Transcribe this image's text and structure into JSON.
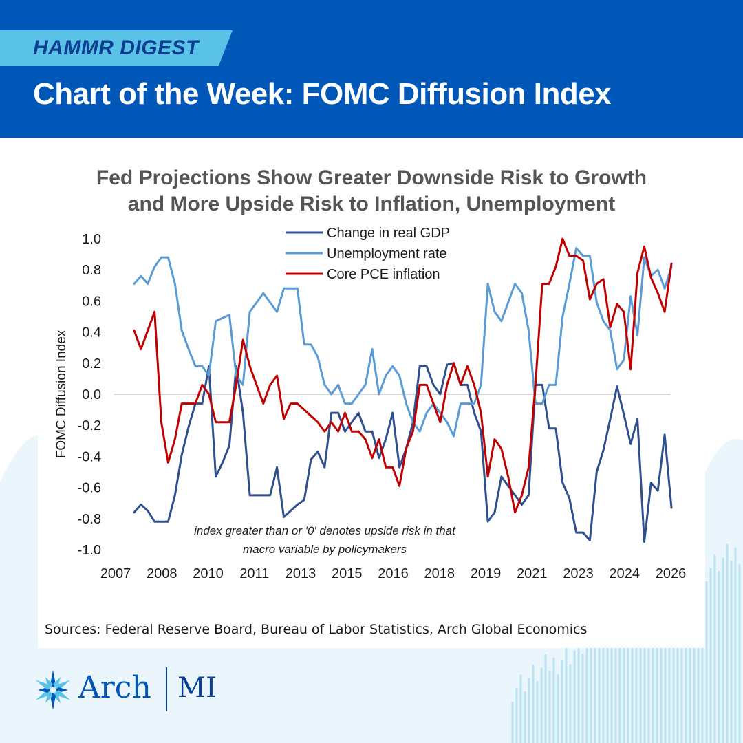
{
  "header": {
    "tag": "HAMMR DIGEST",
    "title": "Chart of the Week: FOMC Diffusion Index"
  },
  "brand": {
    "name": "Arch",
    "suffix": "MI",
    "primary": "#0057b8",
    "accent": "#5bc2e7",
    "navy": "#0b3d91"
  },
  "source": "Sources: Federal Reserve Board, Bureau of Labor Statistics, Arch Global Economics",
  "chart_data": {
    "type": "line",
    "title": "Fed Projections Show Greater Downside Risk to Growth",
    "title_line2": "and More Upside Risk to Inflation, Unemployment",
    "ylabel": "FOMC Diffusion Index",
    "xlabel": "",
    "ylim": [
      -1.0,
      1.0
    ],
    "xlim": [
      2007.33,
      2026.42
    ],
    "yticks": [
      "1.0",
      "0.8",
      "0.6",
      "0.4",
      "0.2",
      "0.0",
      "-0.2",
      "-0.4",
      "-0.6",
      "-0.8",
      "-1.0"
    ],
    "xticks": [
      "2007",
      "2008",
      "2010",
      "2011",
      "2013",
      "2015",
      "2016",
      "2018",
      "2019",
      "2021",
      "2023",
      "2024",
      "2026"
    ],
    "grid": false,
    "legend_position": "top-center",
    "annotation": [
      "index greater than or '0' denotes upside risk in that",
      "macro variable by policymakers"
    ],
    "series": [
      {
        "name": "Change in real GDP",
        "color": "#2f4f8f",
        "values": [
          -0.76,
          -0.71,
          -0.75,
          -0.82,
          -0.82,
          -0.82,
          -0.65,
          -0.39,
          -0.21,
          -0.06,
          -0.06,
          0.18,
          -0.53,
          -0.44,
          -0.33,
          0.18,
          -0.12,
          -0.65,
          -0.65,
          -0.65,
          -0.65,
          -0.47,
          -0.79,
          -0.75,
          -0.71,
          -0.68,
          -0.42,
          -0.37,
          -0.47,
          -0.12,
          -0.12,
          -0.24,
          -0.18,
          -0.12,
          -0.24,
          -0.24,
          -0.41,
          -0.29,
          -0.12,
          -0.47,
          -0.35,
          -0.18,
          0.18,
          0.18,
          0.06,
          0.0,
          0.19,
          0.2,
          0.06,
          0.06,
          -0.12,
          -0.24,
          -0.82,
          -0.76,
          -0.53,
          -0.59,
          -0.65,
          -0.71,
          -0.65,
          0.06,
          0.06,
          -0.22,
          -0.22,
          -0.57,
          -0.67,
          -0.89,
          -0.89,
          -0.94,
          -0.5,
          -0.36,
          -0.16,
          0.05,
          -0.13,
          -0.32,
          -0.16,
          -0.95,
          -0.57,
          -0.62,
          -0.26,
          -0.73
        ]
      },
      {
        "name": "Unemployment rate",
        "color": "#5b9bd5",
        "values": [
          0.71,
          0.76,
          0.71,
          0.82,
          0.88,
          0.88,
          0.71,
          0.41,
          0.29,
          0.18,
          0.18,
          0.12,
          0.47,
          0.49,
          0.51,
          0.12,
          0.06,
          0.53,
          0.59,
          0.65,
          0.59,
          0.53,
          0.68,
          0.68,
          0.68,
          0.32,
          0.32,
          0.24,
          0.06,
          0.0,
          0.06,
          -0.06,
          -0.06,
          0.0,
          0.06,
          0.29,
          0.0,
          0.12,
          0.18,
          0.12,
          -0.06,
          -0.18,
          -0.24,
          -0.12,
          -0.06,
          -0.12,
          -0.18,
          -0.27,
          -0.06,
          -0.06,
          -0.06,
          0.06,
          0.71,
          0.53,
          0.47,
          0.59,
          0.71,
          0.65,
          0.41,
          -0.06,
          -0.06,
          0.06,
          0.06,
          0.5,
          0.71,
          0.94,
          0.89,
          0.89,
          0.59,
          0.47,
          0.41,
          0.16,
          0.22,
          0.63,
          0.38,
          0.88,
          0.76,
          0.8,
          0.68,
          0.82
        ]
      },
      {
        "name": "Core PCE inflation",
        "color": "#c00000",
        "values": [
          0.41,
          0.29,
          0.41,
          0.53,
          -0.18,
          -0.44,
          -0.29,
          -0.06,
          -0.06,
          -0.06,
          0.06,
          0.0,
          -0.18,
          -0.18,
          -0.18,
          0.06,
          0.35,
          0.18,
          0.06,
          -0.06,
          0.06,
          0.12,
          -0.16,
          -0.06,
          -0.06,
          -0.1,
          -0.14,
          -0.18,
          -0.24,
          -0.18,
          -0.24,
          -0.12,
          -0.24,
          -0.24,
          -0.29,
          -0.41,
          -0.29,
          -0.47,
          -0.47,
          -0.59,
          -0.35,
          -0.24,
          0.06,
          0.06,
          -0.06,
          -0.18,
          0.06,
          0.2,
          0.06,
          0.18,
          0.06,
          -0.12,
          -0.53,
          -0.29,
          -0.35,
          -0.53,
          -0.76,
          -0.65,
          -0.47,
          0.06,
          0.71,
          0.71,
          0.82,
          1.0,
          0.89,
          0.89,
          0.86,
          0.61,
          0.71,
          0.74,
          0.43,
          0.58,
          0.53,
          0.16,
          0.78,
          0.95,
          0.75,
          0.65,
          0.53,
          0.84
        ]
      }
    ]
  }
}
